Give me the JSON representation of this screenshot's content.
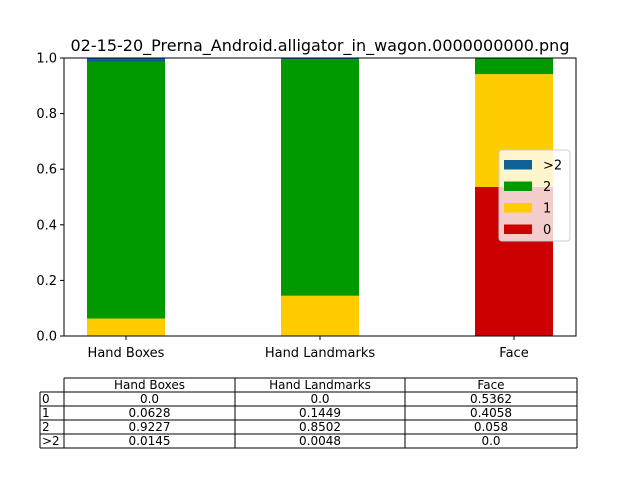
{
  "chart_data": {
    "type": "bar",
    "stacked": true,
    "title": "02-15-20_Prerna_Android.alligator_in_wagon.0000000000.png",
    "xlabel": "",
    "ylabel": "",
    "categories": [
      "Hand Boxes",
      "Hand Landmarks",
      "Face"
    ],
    "ylim": [
      0,
      1.0
    ],
    "yticks": [
      "0.0",
      "0.2",
      "0.4",
      "0.6",
      "0.8",
      "1.0"
    ],
    "grid": false,
    "legend_placement": "center-right",
    "series": [
      {
        "name": "0",
        "color": "#cc0000",
        "values": [
          0.0,
          0.0,
          0.5362
        ]
      },
      {
        "name": "1",
        "color": "#ffcc00",
        "values": [
          0.0628,
          0.1449,
          0.4058
        ]
      },
      {
        "name": "2",
        "color": "#009900",
        "values": [
          0.9227,
          0.8502,
          0.058
        ]
      },
      {
        "name": ">2",
        "color": "#0e6096",
        "values": [
          0.0145,
          0.0048,
          0.0
        ]
      }
    ],
    "legend_order": [
      ">2",
      "2",
      "1",
      "0"
    ]
  },
  "table": {
    "headers": [
      "Hand Boxes",
      "Hand Landmarks",
      "Face"
    ],
    "rows": [
      {
        "label": "0",
        "cells": [
          "0.0",
          "0.0",
          "0.5362"
        ]
      },
      {
        "label": "1",
        "cells": [
          "0.0628",
          "0.1449",
          "0.4058"
        ]
      },
      {
        "label": "2",
        "cells": [
          "0.9227",
          "0.8502",
          "0.058"
        ]
      },
      {
        "label": ">2",
        "cells": [
          "0.0145",
          "0.0048",
          "0.0"
        ]
      }
    ]
  }
}
